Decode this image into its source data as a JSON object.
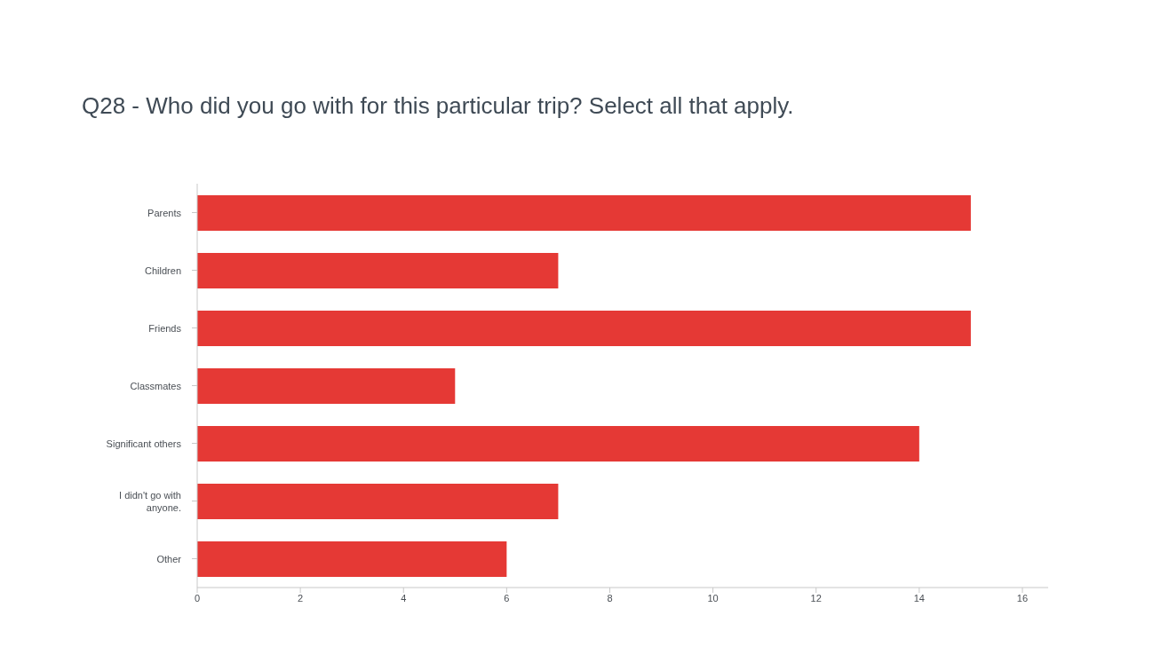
{
  "chart_data": {
    "type": "bar",
    "orientation": "horizontal",
    "title": "Q28 - Who did you go with for this particular trip? Select all that apply.",
    "categories": [
      "Parents",
      "Children",
      "Friends",
      "Classmates",
      "Significant others",
      "I didn't go with anyone.",
      "Other"
    ],
    "values": [
      15,
      7,
      15,
      5,
      14,
      7,
      6
    ],
    "color": "#e53935",
    "xlim": [
      0,
      16.5
    ],
    "xticks": [
      0,
      2,
      4,
      6,
      8,
      10,
      12,
      14,
      16
    ],
    "grid": false
  }
}
